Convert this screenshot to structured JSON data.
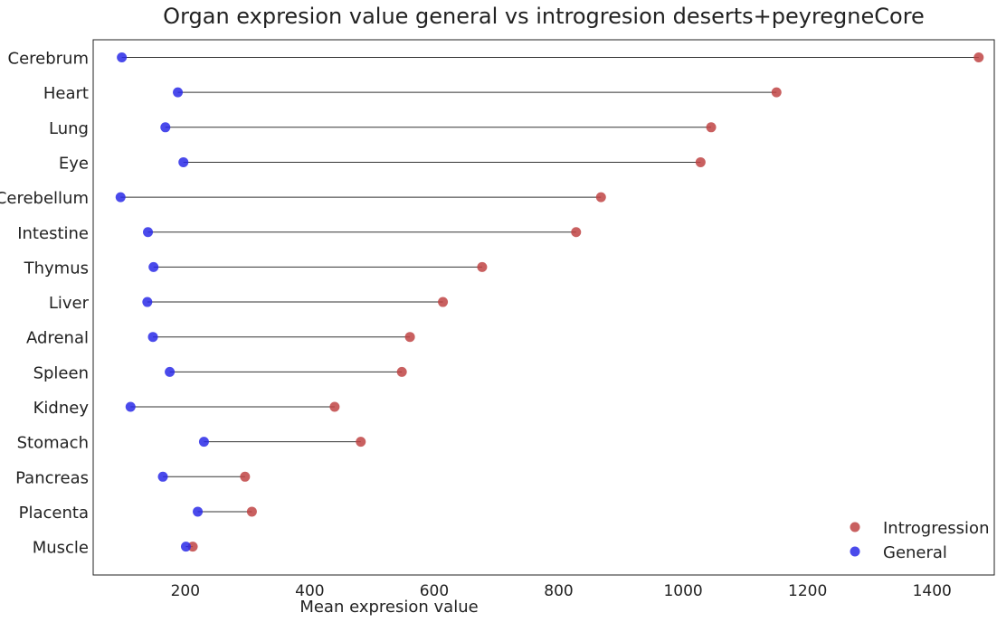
{
  "chart_data": {
    "type": "dumbbell",
    "title": "Organ expresion value general vs introgresion deserts+peyregneCore",
    "xlabel": "Mean expresion value",
    "ylabel": "",
    "xlim": [
      52,
      1500
    ],
    "xticks": [
      200,
      400,
      600,
      800,
      1000,
      1200,
      1400
    ],
    "grid": false,
    "legend_position": "lower-right",
    "categories": [
      "Cerebrum",
      "Heart",
      "Lung",
      "Eye",
      "Cerebellum",
      "Intestine",
      "Thymus",
      "Liver",
      "Adrenal",
      "Spleen",
      "Kidney",
      "Stomach",
      "Pancreas",
      "Placenta",
      "Muscle"
    ],
    "series": [
      {
        "name": "Introgression",
        "color": "#c04444",
        "values": [
          1475,
          1150,
          1045,
          1028,
          868,
          828,
          677,
          614,
          561,
          548,
          440,
          482,
          296,
          307,
          212
        ]
      },
      {
        "name": "General",
        "color": "#2a2ae8",
        "values": [
          98,
          188,
          168,
          197,
          96,
          140,
          149,
          139,
          148,
          175,
          112,
          230,
          164,
          220,
          201
        ]
      }
    ]
  }
}
